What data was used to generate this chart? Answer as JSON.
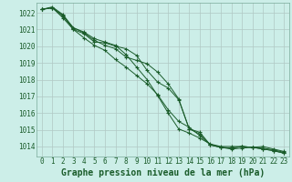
{
  "background_color": "#cceee8",
  "grid_color": "#b0c8c4",
  "line_color": "#1a5c2a",
  "xlabel": "Graphe pression niveau de la mer (hPa)",
  "xlabel_fontsize": 7,
  "ylabel_ticks": [
    1014,
    1015,
    1016,
    1017,
    1018,
    1019,
    1020,
    1021,
    1022
  ],
  "xlim": [
    -0.5,
    23.5
  ],
  "ylim": [
    1013.4,
    1022.6
  ],
  "xticks": [
    0,
    1,
    2,
    3,
    4,
    5,
    6,
    7,
    8,
    9,
    10,
    11,
    12,
    13,
    14,
    15,
    16,
    17,
    18,
    19,
    20,
    21,
    22,
    23
  ],
  "tick_fontsize": 5.5,
  "series": [
    [
      1022.2,
      1022.3,
      1021.85,
      1021.0,
      1020.75,
      1020.25,
      1020.2,
      1020.0,
      1019.85,
      1019.45,
      1018.55,
      1017.85,
      1017.5,
      1016.8,
      1015.05,
      1014.85,
      1014.1,
      1013.95,
      1013.9,
      1014.0,
      1013.95,
      1014.0,
      1013.85,
      1013.7
    ],
    [
      1022.2,
      1022.3,
      1021.8,
      1021.1,
      1020.85,
      1020.45,
      1020.25,
      1020.05,
      1019.5,
      1018.75,
      1018.0,
      1017.05,
      1016.0,
      1015.05,
      1014.8,
      1014.5,
      1014.15,
      1014.0,
      1014.0,
      1014.0,
      1013.95,
      1013.9,
      1013.8,
      1013.65
    ],
    [
      1022.2,
      1022.3,
      1021.7,
      1021.0,
      1020.5,
      1020.05,
      1019.75,
      1019.2,
      1018.75,
      1018.25,
      1017.75,
      1017.1,
      1016.2,
      1015.5,
      1015.15,
      1014.65,
      1014.1,
      1013.95,
      1013.9,
      1014.0,
      1013.95,
      1013.85,
      1013.75,
      1013.6
    ],
    [
      1022.2,
      1022.35,
      1021.9,
      1021.1,
      1020.8,
      1020.35,
      1020.05,
      1019.85,
      1019.35,
      1019.15,
      1018.95,
      1018.45,
      1017.75,
      1016.85,
      1015.05,
      1014.75,
      1014.1,
      1013.95,
      1013.85,
      1013.9,
      1013.95,
      1013.85,
      1013.75,
      1013.6
    ]
  ]
}
